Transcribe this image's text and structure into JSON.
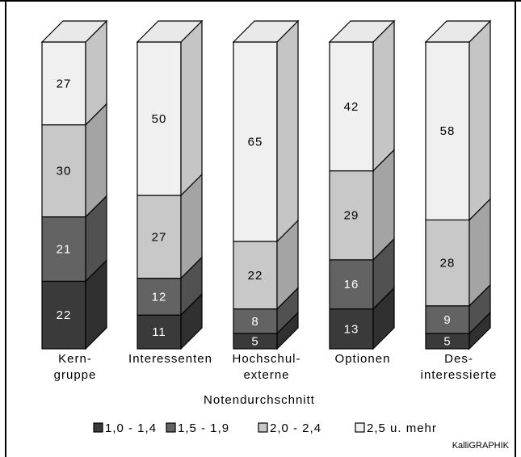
{
  "chart_data": {
    "type": "bar",
    "stacked": true,
    "three_d": true,
    "categories": [
      {
        "lines": [
          "Kern-",
          "gruppe"
        ]
      },
      {
        "lines": [
          "Interessenten"
        ]
      },
      {
        "lines": [
          "Hochschul-",
          "externe"
        ]
      },
      {
        "lines": [
          "Optionen"
        ]
      },
      {
        "lines": [
          "Des-",
          "interessierte"
        ]
      }
    ],
    "series": [
      {
        "name": "1,0 - 1,4",
        "color": "#3a3a3a",
        "values": [
          22,
          11,
          5,
          13,
          5
        ]
      },
      {
        "name": "1,5 - 1,9",
        "color": "#636363",
        "values": [
          21,
          12,
          8,
          16,
          9
        ]
      },
      {
        "name": "2,0 - 2,4",
        "color": "#c8c8c8",
        "values": [
          30,
          27,
          22,
          29,
          28
        ]
      },
      {
        "name": "2,5 u. mehr",
        "color": "#f0f0f0",
        "values": [
          27,
          50,
          65,
          42,
          58
        ]
      }
    ],
    "legend_title": "Notendurchschnitt",
    "legend_position": "bottom"
  },
  "credit": "KalliGRAPHIK"
}
